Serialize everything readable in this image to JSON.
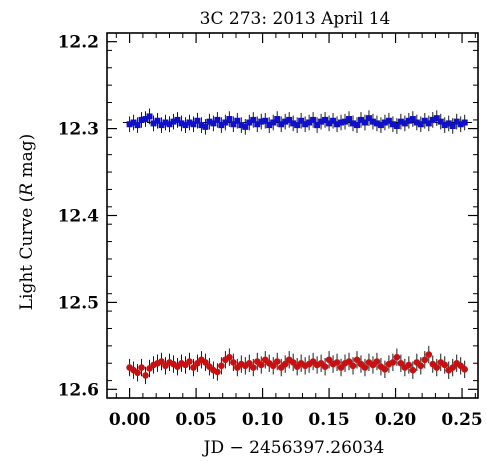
{
  "chart_data": {
    "type": "scatter",
    "title": "3C 273: 2013 April 14",
    "xlabel": "JD − 2456397.26034",
    "ylabel": "Light Curve (R mag)",
    "ylabel_parts": {
      "before": "Light Curve (",
      "italic": "R",
      "after": " mag)"
    },
    "xlim": [
      -0.017,
      0.262
    ],
    "ylim": [
      12.61,
      12.19
    ],
    "y_inverted": true,
    "x_ticks": [
      0.0,
      0.05,
      0.1,
      0.15,
      0.2,
      0.25
    ],
    "x_tick_labels": [
      "0.00",
      "0.05",
      "0.10",
      "0.15",
      "0.20",
      "0.25"
    ],
    "y_ticks": [
      12.2,
      12.3,
      12.4,
      12.5,
      12.6
    ],
    "y_tick_labels": [
      "12.2",
      "12.3",
      "12.4",
      "12.5",
      "12.6"
    ],
    "grid": false,
    "legend": "none",
    "series": [
      {
        "marker": "square",
        "color": "#1010c8",
        "reference_line": 12.293,
        "x": [
          0.0,
          0.003,
          0.006,
          0.009,
          0.012,
          0.015,
          0.018,
          0.021,
          0.024,
          0.027,
          0.03,
          0.033,
          0.036,
          0.039,
          0.042,
          0.045,
          0.048,
          0.051,
          0.054,
          0.057,
          0.06,
          0.063,
          0.066,
          0.069,
          0.072,
          0.075,
          0.078,
          0.081,
          0.084,
          0.087,
          0.09,
          0.093,
          0.096,
          0.099,
          0.102,
          0.105,
          0.108,
          0.111,
          0.114,
          0.117,
          0.12,
          0.123,
          0.126,
          0.129,
          0.132,
          0.135,
          0.138,
          0.141,
          0.144,
          0.147,
          0.15,
          0.153,
          0.156,
          0.159,
          0.162,
          0.165,
          0.168,
          0.171,
          0.174,
          0.177,
          0.18,
          0.183,
          0.186,
          0.189,
          0.192,
          0.195,
          0.198,
          0.201,
          0.204,
          0.207,
          0.21,
          0.213,
          0.216,
          0.219,
          0.222,
          0.225,
          0.228,
          0.231,
          0.234,
          0.237,
          0.24,
          0.243,
          0.246,
          0.249,
          0.252
        ],
        "y": [
          12.295,
          12.293,
          12.296,
          12.29,
          12.289,
          12.286,
          12.294,
          12.291,
          12.296,
          12.293,
          12.295,
          12.292,
          12.29,
          12.294,
          12.296,
          12.293,
          12.295,
          12.291,
          12.296,
          12.298,
          12.292,
          12.294,
          12.29,
          12.296,
          12.293,
          12.289,
          12.295,
          12.291,
          12.296,
          12.298,
          12.293,
          12.29,
          12.295,
          12.292,
          12.291,
          12.296,
          12.293,
          12.289,
          12.295,
          12.292,
          12.29,
          12.294,
          12.296,
          12.291,
          12.295,
          12.293,
          12.29,
          12.296,
          12.292,
          12.29,
          12.294,
          12.291,
          12.295,
          12.293,
          12.292,
          12.289,
          12.294,
          12.296,
          12.29,
          12.293,
          12.288,
          12.292,
          12.294,
          12.296,
          12.293,
          12.291,
          12.295,
          12.297,
          12.292,
          12.294,
          12.291,
          12.289,
          12.293,
          12.295,
          12.291,
          12.294,
          12.29,
          12.288,
          12.292,
          12.296,
          12.294,
          12.297,
          12.292,
          12.295,
          12.293
        ],
        "err": 0.009
      },
      {
        "marker": "circle",
        "color": "#c81010",
        "x": [
          0.0,
          0.003,
          0.006,
          0.009,
          0.012,
          0.015,
          0.018,
          0.021,
          0.024,
          0.027,
          0.03,
          0.033,
          0.036,
          0.039,
          0.042,
          0.045,
          0.048,
          0.051,
          0.054,
          0.057,
          0.06,
          0.063,
          0.066,
          0.069,
          0.072,
          0.075,
          0.078,
          0.081,
          0.084,
          0.087,
          0.09,
          0.093,
          0.096,
          0.099,
          0.102,
          0.105,
          0.108,
          0.111,
          0.114,
          0.117,
          0.12,
          0.123,
          0.126,
          0.129,
          0.132,
          0.135,
          0.138,
          0.141,
          0.144,
          0.147,
          0.15,
          0.153,
          0.156,
          0.159,
          0.162,
          0.165,
          0.168,
          0.171,
          0.174,
          0.177,
          0.18,
          0.183,
          0.186,
          0.189,
          0.192,
          0.195,
          0.198,
          0.201,
          0.204,
          0.207,
          0.21,
          0.213,
          0.216,
          0.219,
          0.222,
          0.225,
          0.228,
          0.231,
          0.234,
          0.237,
          0.24,
          0.243,
          0.246,
          0.249,
          0.252
        ],
        "y": [
          12.575,
          12.578,
          12.581,
          12.575,
          12.584,
          12.576,
          12.572,
          12.57,
          12.568,
          12.573,
          12.569,
          12.571,
          12.574,
          12.57,
          12.572,
          12.568,
          12.575,
          12.57,
          12.566,
          12.569,
          12.574,
          12.578,
          12.58,
          12.573,
          12.566,
          12.563,
          12.569,
          12.575,
          12.571,
          12.573,
          12.57,
          12.575,
          12.568,
          12.572,
          12.566,
          12.57,
          12.573,
          12.568,
          12.575,
          12.571,
          12.566,
          12.569,
          12.574,
          12.57,
          12.573,
          12.571,
          12.568,
          12.572,
          12.57,
          12.574,
          12.566,
          12.571,
          12.569,
          12.575,
          12.57,
          12.568,
          12.573,
          12.566,
          12.571,
          12.575,
          12.569,
          12.572,
          12.568,
          12.574,
          12.577,
          12.571,
          12.569,
          12.563,
          12.57,
          12.575,
          12.572,
          12.578,
          12.569,
          12.573,
          12.566,
          12.56,
          12.571,
          12.575,
          12.569,
          12.572,
          12.578,
          12.575,
          12.57,
          12.573,
          12.577
        ],
        "err": 0.01
      }
    ]
  }
}
